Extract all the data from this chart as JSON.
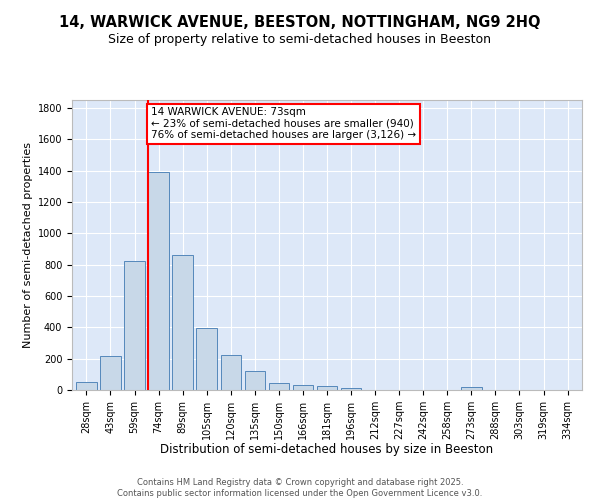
{
  "title1": "14, WARWICK AVENUE, BEESTON, NOTTINGHAM, NG9 2HQ",
  "title2": "Size of property relative to semi-detached houses in Beeston",
  "xlabel": "Distribution of semi-detached houses by size in Beeston",
  "ylabel": "Number of semi-detached properties",
  "bins": [
    "28sqm",
    "43sqm",
    "59sqm",
    "74sqm",
    "89sqm",
    "105sqm",
    "120sqm",
    "135sqm",
    "150sqm",
    "166sqm",
    "181sqm",
    "196sqm",
    "212sqm",
    "227sqm",
    "242sqm",
    "258sqm",
    "273sqm",
    "288sqm",
    "303sqm",
    "319sqm",
    "334sqm"
  ],
  "values": [
    50,
    220,
    825,
    1390,
    860,
    395,
    225,
    120,
    45,
    30,
    25,
    15,
    0,
    0,
    0,
    0,
    20,
    0,
    0,
    0,
    0
  ],
  "bar_color": "#c8d8e8",
  "bar_edge_color": "#5588bb",
  "vline_x": 3,
  "vline_color": "red",
  "annotation_text": "14 WARWICK AVENUE: 73sqm\n← 23% of semi-detached houses are smaller (940)\n76% of semi-detached houses are larger (3,126) →",
  "annotation_box_color": "white",
  "annotation_box_edge": "red",
  "ylim": [
    0,
    1850
  ],
  "yticks": [
    0,
    200,
    400,
    600,
    800,
    1000,
    1200,
    1400,
    1600,
    1800
  ],
  "bg_color": "#dde8f8",
  "footer": "Contains HM Land Registry data © Crown copyright and database right 2025.\nContains public sector information licensed under the Open Government Licence v3.0.",
  "title1_fontsize": 10.5,
  "title2_fontsize": 9,
  "xlabel_fontsize": 8.5,
  "ylabel_fontsize": 8,
  "tick_fontsize": 7,
  "annotation_fontsize": 7.5,
  "footer_fontsize": 6
}
